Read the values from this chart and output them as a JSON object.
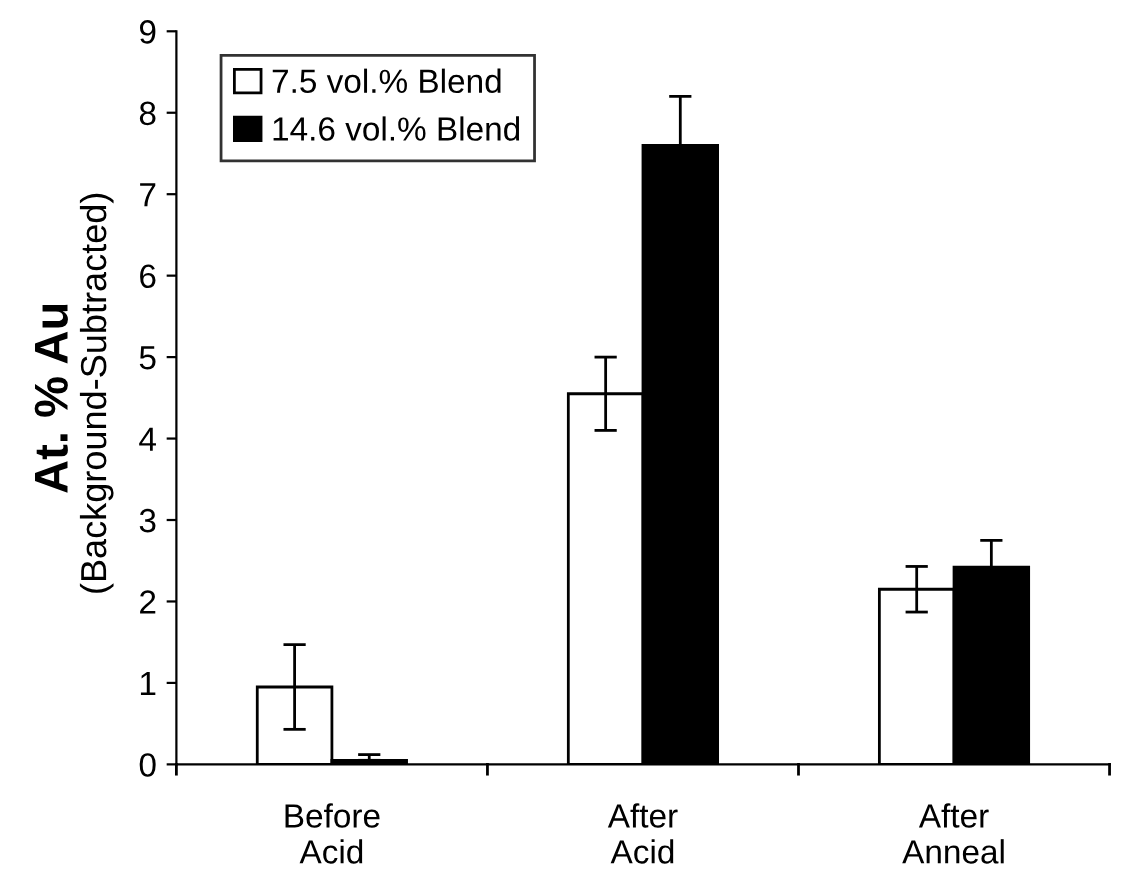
{
  "chart_data": {
    "type": "bar",
    "ylabel": "At. % Au",
    "annotations": [
      "(Background-Subtracted)"
    ],
    "categories": [
      "Before\nAcid",
      "After\nAcid",
      "After\nAnneal"
    ],
    "series": [
      {
        "name": "7.5 vol.% Blend",
        "color": "#ffffff",
        "values": [
          0.95,
          4.55,
          2.15
        ],
        "errors": [
          0.52,
          0.45,
          0.28
        ]
      },
      {
        "name": "14.6 vol.% Blend",
        "color": "#000000",
        "values": [
          0.05,
          7.6,
          2.42
        ],
        "errors": [
          [
            0.05,
            0.12
          ],
          0.6,
          0.33
        ]
      }
    ],
    "ylim": [
      0,
      9
    ],
    "yticks": [
      0,
      1,
      2,
      3,
      4,
      5,
      6,
      7,
      8,
      9
    ],
    "grid": false,
    "legend": "top left"
  }
}
